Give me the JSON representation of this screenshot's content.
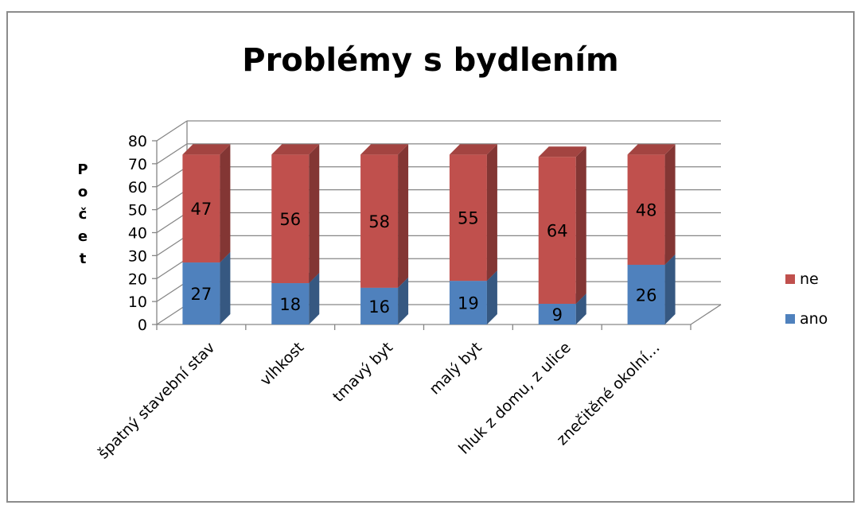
{
  "chart_data": {
    "type": "bar",
    "stacked": true,
    "three_d": true,
    "title": "Problémy s bydlením",
    "ylabel": "Počet",
    "xlabel": "",
    "ylim": [
      0,
      80
    ],
    "yticks": [
      0,
      10,
      20,
      30,
      40,
      50,
      60,
      70,
      80
    ],
    "grid": true,
    "legend_position": "right",
    "categories": [
      "špatný stavební stav",
      "vlhkost",
      "tmavý byt",
      "malý byt",
      "hluk z domu, z ulice",
      "znečitěné okolní…"
    ],
    "series": [
      {
        "name": "ano",
        "values": [
          27,
          18,
          16,
          19,
          9,
          26
        ],
        "color": "#4F81BD"
      },
      {
        "name": "ne",
        "values": [
          47,
          56,
          58,
          55,
          64,
          48
        ],
        "color": "#C0504D"
      }
    ],
    "legend_order": [
      "ne",
      "ano"
    ]
  }
}
